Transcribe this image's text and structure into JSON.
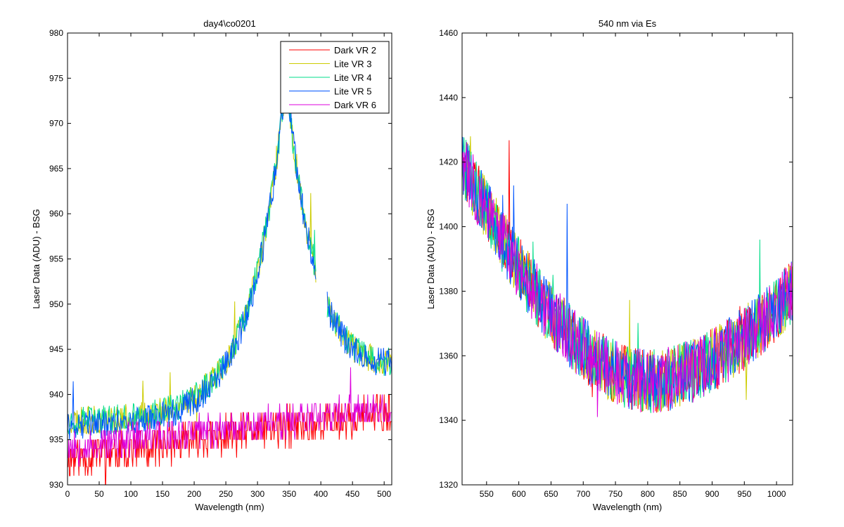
{
  "figure": {
    "background": "#ffffff"
  },
  "chart_data": [
    {
      "id": "left",
      "type": "line",
      "title": "day4\\co0201",
      "xlabel": "Wavelength (nm)",
      "ylabel": "Laser Data (ADU) - BSG",
      "xlim": [
        0,
        512
      ],
      "ylim": [
        930,
        980
      ],
      "xticks": [
        0,
        50,
        100,
        150,
        200,
        250,
        300,
        350,
        400,
        450,
        500
      ],
      "yticks": [
        930,
        935,
        940,
        945,
        950,
        955,
        960,
        965,
        970,
        975,
        980
      ],
      "grid": false,
      "legend": "top-right",
      "gap": [
        392,
        410
      ],
      "series": [
        {
          "name": "Dark VR 2",
          "color": "#ff0000",
          "kind": "flat",
          "start": 933,
          "end": 938,
          "noise": 2.2,
          "seed": 11
        },
        {
          "name": "Lite VR 3",
          "color": "#cccc00",
          "kind": "peak",
          "base": 937,
          "peak": 975,
          "center": 345,
          "width": 55,
          "end": 942,
          "noise": 1.6,
          "seed": 23
        },
        {
          "name": "Lite VR 4",
          "color": "#00dd88",
          "kind": "peak",
          "base": 937,
          "peak": 975,
          "center": 345,
          "width": 55,
          "end": 942,
          "noise": 1.6,
          "seed": 37
        },
        {
          "name": "Lite VR 5",
          "color": "#0055ff",
          "kind": "peak",
          "base": 936.5,
          "peak": 975,
          "center": 345,
          "width": 55,
          "end": 942,
          "noise": 1.6,
          "seed": 41
        },
        {
          "name": "Dark VR 6",
          "color": "#dd00dd",
          "kind": "flat",
          "start": 934,
          "end": 938.5,
          "noise": 1.8,
          "seed": 53
        }
      ]
    },
    {
      "id": "right",
      "type": "line",
      "title": "540 nm via Es",
      "xlabel": "Wavelength (nm)",
      "ylabel": "Laser Data (ADU) - RSG",
      "xlim": [
        512,
        1025
      ],
      "ylim": [
        1320,
        1460
      ],
      "xticks": [
        550,
        600,
        650,
        700,
        750,
        800,
        850,
        900,
        950,
        1000
      ],
      "yticks": [
        1320,
        1340,
        1360,
        1380,
        1400,
        1420,
        1440,
        1460
      ],
      "grid": false,
      "series": [
        {
          "name": "Dark VR 2",
          "color": "#ff0000",
          "kind": "bowl",
          "left": 1420,
          "min": 1352,
          "center": 800,
          "right": 1380,
          "noise": 10,
          "seed": 61
        },
        {
          "name": "Lite VR 3",
          "color": "#cccc00",
          "kind": "bowl",
          "left": 1420,
          "min": 1352,
          "center": 800,
          "right": 1380,
          "noise": 10,
          "seed": 67
        },
        {
          "name": "Lite VR 4",
          "color": "#00dd88",
          "kind": "bowl",
          "left": 1420,
          "min": 1352,
          "center": 800,
          "right": 1380,
          "noise": 10,
          "seed": 71
        },
        {
          "name": "Lite VR 5",
          "color": "#0055ff",
          "kind": "bowl",
          "left": 1420,
          "min": 1352,
          "center": 800,
          "right": 1380,
          "noise": 10,
          "seed": 79
        },
        {
          "name": "Dark VR 6",
          "color": "#dd00dd",
          "kind": "bowl",
          "left": 1420,
          "min": 1352,
          "center": 800,
          "right": 1380,
          "noise": 10,
          "seed": 83
        }
      ]
    }
  ]
}
